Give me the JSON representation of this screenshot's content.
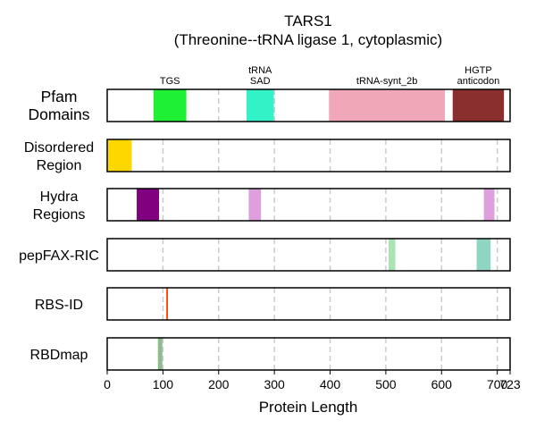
{
  "chart_data": {
    "type": "bar",
    "title": "TARS1",
    "subtitle": "(Threonine--tRNA ligase 1, cytoplasmic)",
    "xlabel": "Protein Length",
    "xlim": [
      0,
      723
    ],
    "xticks": [
      0,
      100,
      200,
      300,
      400,
      500,
      600,
      700,
      723
    ],
    "xtick_labels": [
      "0",
      "100",
      "200",
      "300",
      "400",
      "500",
      "600",
      "700",
      "723"
    ],
    "grid_x": [
      100,
      200,
      300,
      400,
      500,
      600,
      700
    ],
    "protein_length": 723,
    "tracks": [
      {
        "name": "Pfam\nDomains",
        "segments": [
          {
            "label": "TGS",
            "start": 83,
            "end": 142,
            "color": "#1ef035"
          },
          {
            "label": "tRNA\nSAD",
            "start": 250,
            "end": 299,
            "color": "#33f2c8"
          },
          {
            "label": "tRNA-synt_2b",
            "start": 398,
            "end": 606,
            "color": "#f0a8b8"
          },
          {
            "label": "HGTP\nanticodon",
            "start": 620,
            "end": 712,
            "color": "#8b2e2e"
          }
        ]
      },
      {
        "name": "Disordered\nRegion",
        "segments": [
          {
            "label": "",
            "start": 0,
            "end": 44,
            "color": "#ffd700"
          }
        ]
      },
      {
        "name": "Hydra\nRegions",
        "segments": [
          {
            "label": "",
            "start": 53,
            "end": 93,
            "color": "#800080"
          },
          {
            "label": "",
            "start": 254,
            "end": 276,
            "color": "#dda0dd"
          },
          {
            "label": "",
            "start": 676,
            "end": 695,
            "color": "#dda0dd"
          }
        ]
      },
      {
        "name": "pepFAX-RIC",
        "segments": [
          {
            "label": "",
            "start": 505,
            "end": 517,
            "color": "#a8e4b4"
          },
          {
            "label": "",
            "start": 663,
            "end": 688,
            "color": "#8fd6c2"
          }
        ]
      },
      {
        "name": "RBS-ID",
        "segments": [
          {
            "label": "",
            "start": 106,
            "end": 109,
            "color": "#ff4500"
          }
        ]
      },
      {
        "name": "RBDmap",
        "segments": [
          {
            "label": "",
            "start": 91,
            "end": 99,
            "color": "#8fbc8f"
          }
        ]
      }
    ]
  }
}
